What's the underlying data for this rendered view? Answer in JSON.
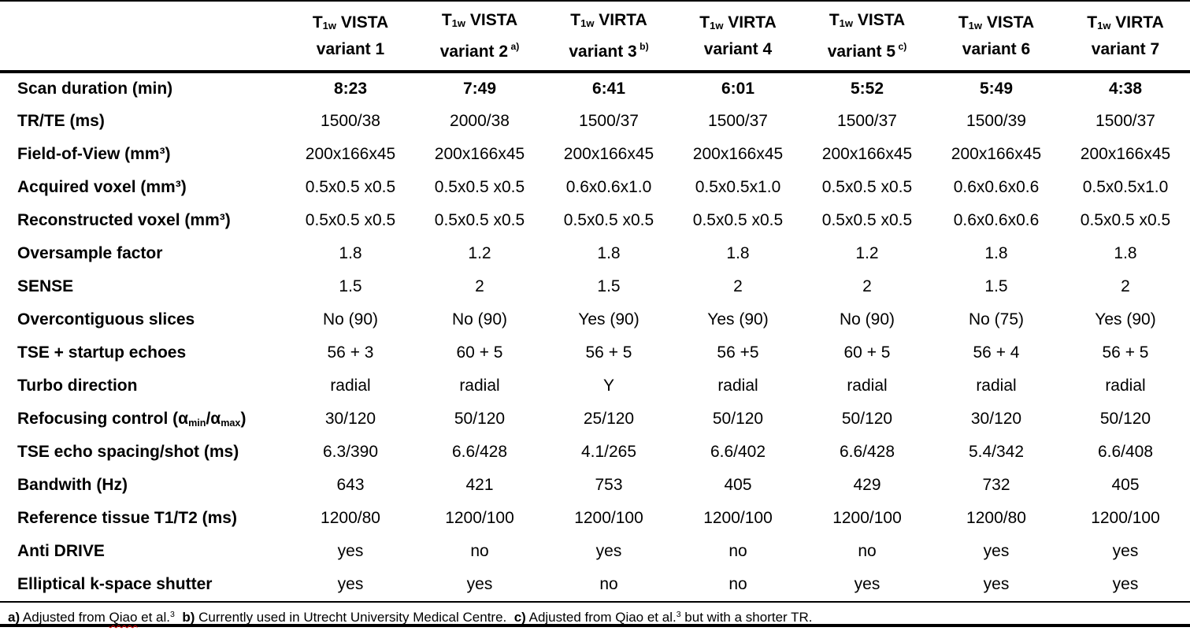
{
  "colors": {
    "text": "#000000",
    "rule_lines": "#000000",
    "background": "#ffffff",
    "spellcheck_underline": "#e00000"
  },
  "header": {
    "corner": "",
    "prefix": "T",
    "prefix_subscript": "1w",
    "columns": [
      {
        "sequence": "VISTA",
        "variant": "variant 1",
        "mark": ""
      },
      {
        "sequence": "VISTA",
        "variant": "variant 2",
        "mark": "a)"
      },
      {
        "sequence": "VIRTA",
        "variant": "variant 3",
        "mark": "b)"
      },
      {
        "sequence": "VIRTA",
        "variant": "variant 4",
        "mark": ""
      },
      {
        "sequence": "VISTA",
        "variant": "variant 5",
        "mark": "c)"
      },
      {
        "sequence": "VISTA",
        "variant": "variant 6",
        "mark": ""
      },
      {
        "sequence": "VIRTA",
        "variant": "variant 7",
        "mark": ""
      }
    ]
  },
  "rows": [
    {
      "key": "scan-duration",
      "label": "Scan duration (min)",
      "bold_values": true,
      "values": [
        "8:23",
        "7:49",
        "6:41",
        "6:01",
        "5:52",
        "5:49",
        "4:38"
      ]
    },
    {
      "key": "tr-te",
      "label": "TR/TE (ms)",
      "values": [
        "1500/38",
        "2000/38",
        "1500/37",
        "1500/37",
        "1500/37",
        "1500/39",
        "1500/37"
      ]
    },
    {
      "key": "field-of-view",
      "label": "Field-of-View (mm³)",
      "values": [
        "200x166x45",
        "200x166x45",
        "200x166x45",
        "200x166x45",
        "200x166x45",
        "200x166x45",
        "200x166x45"
      ]
    },
    {
      "key": "acquired-voxel",
      "label": "Acquired voxel (mm³)",
      "values": [
        "0.5x0.5 x0.5",
        "0.5x0.5 x0.5",
        "0.6x0.6x1.0",
        "0.5x0.5x1.0",
        "0.5x0.5 x0.5",
        "0.6x0.6x0.6",
        "0.5x0.5x1.0"
      ]
    },
    {
      "key": "reconstructed-voxel",
      "label": "Reconstructed voxel (mm³)",
      "values": [
        "0.5x0.5 x0.5",
        "0.5x0.5 x0.5",
        "0.5x0.5 x0.5",
        "0.5x0.5 x0.5",
        "0.5x0.5 x0.5",
        "0.6x0.6x0.6",
        "0.5x0.5 x0.5"
      ]
    },
    {
      "key": "oversample-factor",
      "label": "Oversample factor",
      "values": [
        "1.8",
        "1.2",
        "1.8",
        "1.8",
        "1.2",
        "1.8",
        "1.8"
      ]
    },
    {
      "key": "sense",
      "label": "SENSE",
      "values": [
        "1.5",
        "2",
        "1.5",
        "2",
        "2",
        "1.5",
        "2"
      ]
    },
    {
      "key": "overcontiguous-slices",
      "label": "Overcontiguous slices",
      "values": [
        "No (90)",
        "No (90)",
        "Yes (90)",
        "Yes (90)",
        "No (90)",
        "No (75)",
        "Yes (90)"
      ]
    },
    {
      "key": "tse-startup-echoes",
      "label": "TSE + startup echoes",
      "values": [
        "56 + 3",
        "60 + 5",
        "56 + 5",
        "56 +5",
        "60 + 5",
        "56 + 4",
        "56 + 5"
      ]
    },
    {
      "key": "turbo-direction",
      "label": "Turbo direction",
      "values": [
        "radial",
        "radial",
        "Y",
        "radial",
        "radial",
        "radial",
        "radial"
      ]
    },
    {
      "key": "refocusing-control",
      "label_parts": [
        {
          "t": "Refocusing control (α"
        },
        {
          "sub": "min"
        },
        {
          "t": "/α"
        },
        {
          "sub": "max"
        },
        {
          "t": ")"
        }
      ],
      "values": [
        "30/120",
        "50/120",
        "25/120",
        "50/120",
        "50/120",
        "30/120",
        "50/120"
      ]
    },
    {
      "key": "tse-echo-spacing",
      "label": "TSE echo spacing/shot (ms)",
      "values": [
        "6.3/390",
        "6.6/428",
        "4.1/265",
        "6.6/402",
        "6.6/428",
        "5.4/342",
        "6.6/408"
      ]
    },
    {
      "key": "bandwith",
      "label": "Bandwith (Hz)",
      "values": [
        "643",
        "421",
        "753",
        "405",
        "429",
        "732",
        "405"
      ]
    },
    {
      "key": "reference-tissue",
      "label": "Reference tissue T1/T2 (ms)",
      "values": [
        "1200/80",
        "1200/100",
        "1200/100",
        "1200/100",
        "1200/100",
        "1200/80",
        "1200/100"
      ]
    },
    {
      "key": "anti-drive",
      "label": "Anti DRIVE",
      "values": [
        "yes",
        "no",
        "yes",
        "no",
        "no",
        "yes",
        "yes"
      ]
    },
    {
      "key": "elliptical-kspace-shutter",
      "label": "Elliptical k-space shutter",
      "values": [
        "yes",
        "yes",
        "no",
        "no",
        "yes",
        "yes",
        "yes"
      ]
    }
  ],
  "footnote": {
    "parts": [
      {
        "b": "a)"
      },
      {
        "t": " Adjusted from "
      },
      {
        "spell": "Qiao"
      },
      {
        "t": " et al."
      },
      {
        "sup": "3"
      },
      {
        "t": "  "
      },
      {
        "b": "b)"
      },
      {
        "t": " Currently used in Utrecht University Medical Centre.  "
      },
      {
        "b": "c)"
      },
      {
        "t": " Adjusted from Qiao et al."
      },
      {
        "sup": "3"
      },
      {
        "t": " but with a shorter TR."
      }
    ]
  }
}
